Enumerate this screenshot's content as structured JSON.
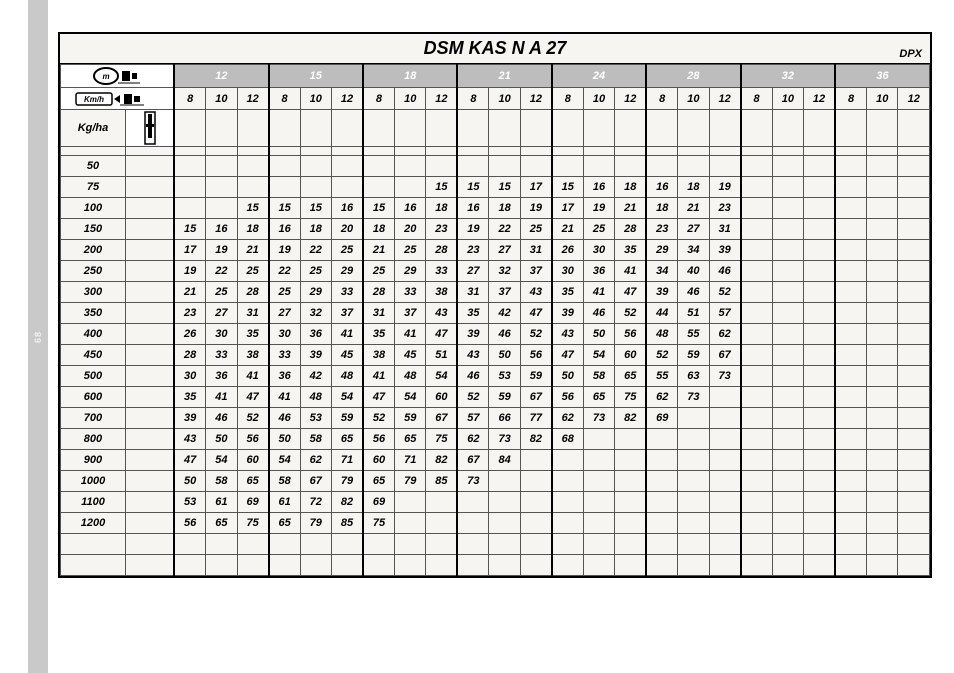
{
  "title": "DSM KAS N A 27",
  "corner_label": "DPX",
  "left_stripe_label": "68",
  "row_header_label": "Kg/ha",
  "speed_header_label": "Km/h",
  "widths": [
    "12",
    "15",
    "18",
    "21",
    "24",
    "28",
    "32",
    "36"
  ],
  "speeds": [
    "8",
    "10",
    "12"
  ],
  "row_labels": [
    "50",
    "75",
    "100",
    "150",
    "200",
    "250",
    "300",
    "350",
    "400",
    "450",
    "500",
    "600",
    "700",
    "800",
    "900",
    "1000",
    "1100",
    "1200"
  ],
  "rows": [
    [
      "",
      "",
      "",
      "",
      "",
      "",
      "",
      "",
      "",
      "",
      "",
      "",
      "",
      "",
      "",
      "",
      "",
      "",
      "",
      "",
      "",
      "",
      "",
      ""
    ],
    [
      "",
      "",
      "",
      "",
      "",
      "",
      "",
      "",
      "15",
      "15",
      "15",
      "17",
      "15",
      "16",
      "18",
      "16",
      "18",
      "19",
      "",
      "",
      "",
      "",
      "",
      ""
    ],
    [
      "",
      "",
      "15",
      "15",
      "15",
      "16",
      "15",
      "16",
      "18",
      "16",
      "18",
      "19",
      "17",
      "19",
      "21",
      "18",
      "21",
      "23",
      "",
      "",
      "",
      "",
      "",
      ""
    ],
    [
      "15",
      "16",
      "18",
      "16",
      "18",
      "20",
      "18",
      "20",
      "23",
      "19",
      "22",
      "25",
      "21",
      "25",
      "28",
      "23",
      "27",
      "31",
      "",
      "",
      "",
      "",
      "",
      ""
    ],
    [
      "17",
      "19",
      "21",
      "19",
      "22",
      "25",
      "21",
      "25",
      "28",
      "23",
      "27",
      "31",
      "26",
      "30",
      "35",
      "29",
      "34",
      "39",
      "",
      "",
      "",
      "",
      "",
      ""
    ],
    [
      "19",
      "22",
      "25",
      "22",
      "25",
      "29",
      "25",
      "29",
      "33",
      "27",
      "32",
      "37",
      "30",
      "36",
      "41",
      "34",
      "40",
      "46",
      "",
      "",
      "",
      "",
      "",
      ""
    ],
    [
      "21",
      "25",
      "28",
      "25",
      "29",
      "33",
      "28",
      "33",
      "38",
      "31",
      "37",
      "43",
      "35",
      "41",
      "47",
      "39",
      "46",
      "52",
      "",
      "",
      "",
      "",
      "",
      ""
    ],
    [
      "23",
      "27",
      "31",
      "27",
      "32",
      "37",
      "31",
      "37",
      "43",
      "35",
      "42",
      "47",
      "39",
      "46",
      "52",
      "44",
      "51",
      "57",
      "",
      "",
      "",
      "",
      "",
      ""
    ],
    [
      "26",
      "30",
      "35",
      "30",
      "36",
      "41",
      "35",
      "41",
      "47",
      "39",
      "46",
      "52",
      "43",
      "50",
      "56",
      "48",
      "55",
      "62",
      "",
      "",
      "",
      "",
      "",
      ""
    ],
    [
      "28",
      "33",
      "38",
      "33",
      "39",
      "45",
      "38",
      "45",
      "51",
      "43",
      "50",
      "56",
      "47",
      "54",
      "60",
      "52",
      "59",
      "67",
      "",
      "",
      "",
      "",
      "",
      ""
    ],
    [
      "30",
      "36",
      "41",
      "36",
      "42",
      "48",
      "41",
      "48",
      "54",
      "46",
      "53",
      "59",
      "50",
      "58",
      "65",
      "55",
      "63",
      "73",
      "",
      "",
      "",
      "",
      "",
      ""
    ],
    [
      "35",
      "41",
      "47",
      "41",
      "48",
      "54",
      "47",
      "54",
      "60",
      "52",
      "59",
      "67",
      "56",
      "65",
      "75",
      "62",
      "73",
      "",
      "",
      "",
      "",
      "",
      "",
      ""
    ],
    [
      "39",
      "46",
      "52",
      "46",
      "53",
      "59",
      "52",
      "59",
      "67",
      "57",
      "66",
      "77",
      "62",
      "73",
      "82",
      "69",
      "",
      "",
      "",
      "",
      "",
      "",
      "",
      ""
    ],
    [
      "43",
      "50",
      "56",
      "50",
      "58",
      "65",
      "56",
      "65",
      "75",
      "62",
      "73",
      "82",
      "68",
      "",
      "",
      "",
      "",
      "",
      "",
      "",
      "",
      "",
      "",
      ""
    ],
    [
      "47",
      "54",
      "60",
      "54",
      "62",
      "71",
      "60",
      "71",
      "82",
      "67",
      "84",
      "",
      "",
      "",
      "",
      "",
      "",
      "",
      "",
      "",
      "",
      "",
      "",
      ""
    ],
    [
      "50",
      "58",
      "65",
      "58",
      "67",
      "79",
      "65",
      "79",
      "85",
      "73",
      "",
      "",
      "",
      "",
      "",
      "",
      "",
      "",
      "",
      "",
      "",
      "",
      "",
      ""
    ],
    [
      "53",
      "61",
      "69",
      "61",
      "72",
      "82",
      "69",
      "",
      "",
      "",
      "",
      "",
      "",
      "",
      "",
      "",
      "",
      "",
      "",
      "",
      "",
      "",
      "",
      ""
    ],
    [
      "56",
      "65",
      "75",
      "65",
      "79",
      "85",
      "75",
      "",
      "",
      "",
      "",
      "",
      "",
      "",
      "",
      "",
      "",
      "",
      "",
      "",
      "",
      "",
      "",
      ""
    ]
  ],
  "colors": {
    "page_bg": "#ffffff",
    "sheet_bg": "#f7f5f2",
    "stripe_bg": "#c9c9c9",
    "width_hdr_bg": "#bdbdbd",
    "width_hdr_fg": "#ffffff",
    "border": "#000000",
    "cell_border": "#555555"
  },
  "fonts": {
    "title_pt": 18,
    "width_hdr_pt": 13,
    "cell_pt": 11,
    "kgha_pt": 14
  }
}
